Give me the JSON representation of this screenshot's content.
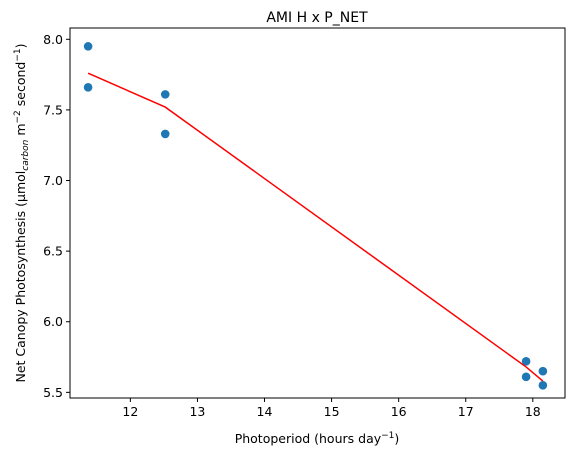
{
  "chart_data": {
    "type": "scatter",
    "title": "AMI H x P_NET",
    "xlabel": {
      "main": "Photoperiod (hours day",
      "sup": "−1",
      "close": ")"
    },
    "ylabel": {
      "p1": "Net Canopy Photosynthesis (µmol",
      "sub": "carbon",
      "p2": " m",
      "sup1": "−2",
      "p3": " second",
      "sup2": "−1",
      "p4": ")"
    },
    "xlim": [
      11.1,
      18.48
    ],
    "ylim": [
      5.46,
      8.08
    ],
    "xticks": [
      12,
      13,
      14,
      15,
      16,
      17,
      18
    ],
    "yticks": [
      5.5,
      6.0,
      6.5,
      7.0,
      7.5,
      8.0
    ],
    "ytick_labels": [
      "5.5",
      "6.0",
      "6.5",
      "7.0",
      "7.5",
      "8.0"
    ],
    "grid": false,
    "points": {
      "color": "#1f77b4",
      "x": [
        11.37,
        11.37,
        12.52,
        12.52,
        17.9,
        17.9,
        18.15,
        18.15
      ],
      "y": [
        7.95,
        7.66,
        7.61,
        7.33,
        5.72,
        5.61,
        5.65,
        5.55
      ]
    },
    "fit_line": {
      "color": "#ff0000",
      "x": [
        11.37,
        12.52,
        17.9,
        18.15
      ],
      "y": [
        7.76,
        7.52,
        5.68,
        5.58
      ]
    }
  }
}
